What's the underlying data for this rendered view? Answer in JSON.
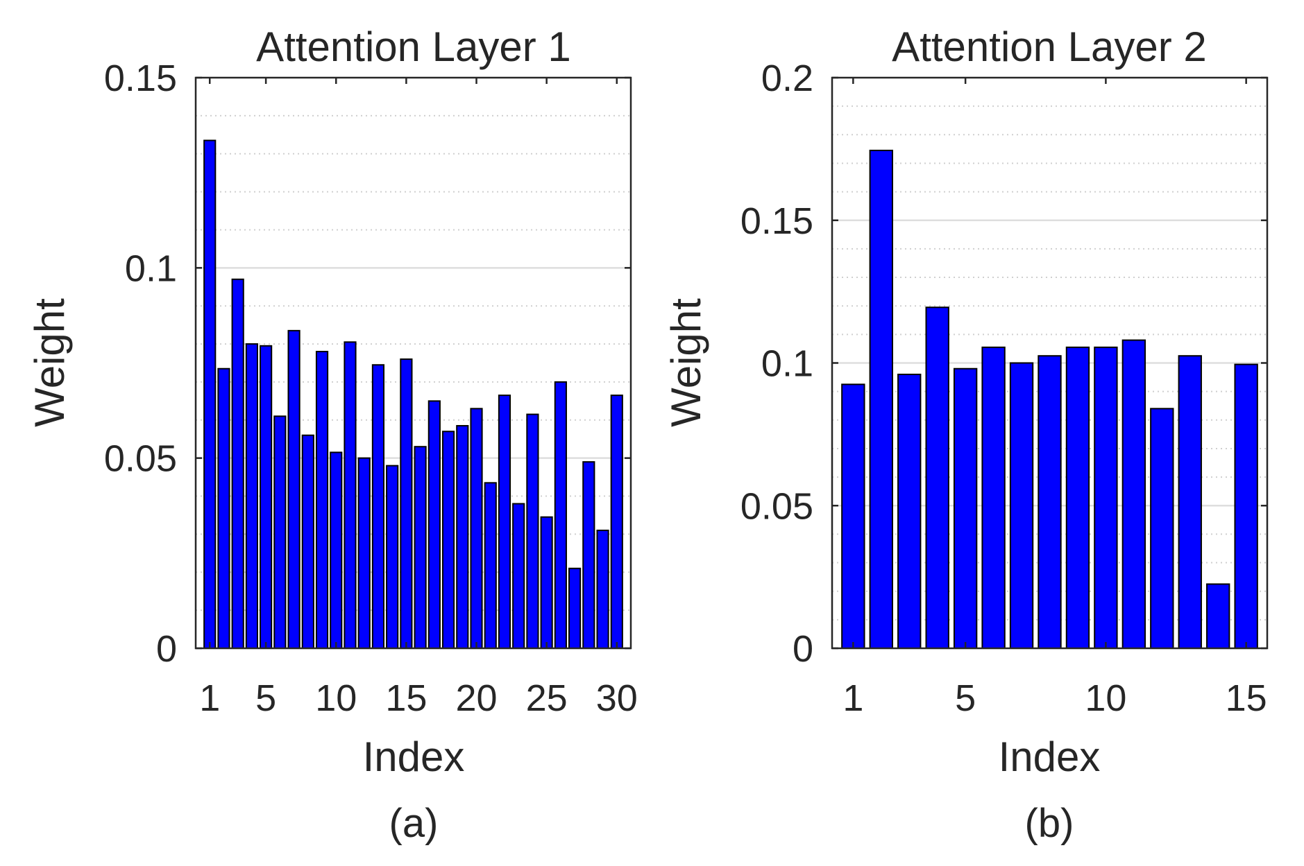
{
  "chart_data": [
    {
      "type": "bar",
      "title": "Attention Layer 1",
      "xlabel": "Index",
      "ylabel": "Weight",
      "caption": "(a)",
      "x": [
        1,
        2,
        3,
        4,
        5,
        6,
        7,
        8,
        9,
        10,
        11,
        12,
        13,
        14,
        15,
        16,
        17,
        18,
        19,
        20,
        21,
        22,
        23,
        24,
        25,
        26,
        27,
        28,
        29,
        30
      ],
      "values": [
        0.1335,
        0.0735,
        0.097,
        0.08,
        0.0795,
        0.061,
        0.0835,
        0.056,
        0.078,
        0.0515,
        0.0805,
        0.05,
        0.0745,
        0.048,
        0.076,
        0.053,
        0.065,
        0.057,
        0.0585,
        0.063,
        0.0435,
        0.0665,
        0.038,
        0.0615,
        0.0345,
        0.07,
        0.021,
        0.049,
        0.031,
        0.0665
      ],
      "xlim": [
        0,
        31
      ],
      "ylim": [
        0,
        0.15
      ],
      "xticks": [
        1,
        5,
        10,
        15,
        20,
        25,
        30
      ],
      "xtick_labels": [
        "1",
        "5",
        "10",
        "15",
        "20",
        "25",
        "30"
      ],
      "yticks": [
        0,
        0.05,
        0.1,
        0.15
      ],
      "ytick_labels": [
        "0",
        "0.05",
        "0.1",
        "0.15"
      ],
      "minor_yticks": [
        0.01,
        0.02,
        0.03,
        0.04,
        0.06,
        0.07,
        0.08,
        0.09,
        0.11,
        0.12,
        0.13,
        0.14
      ],
      "grid": true,
      "bar_color": "#0000ff",
      "edge_color": "#000000"
    },
    {
      "type": "bar",
      "title": "Attention Layer 2",
      "xlabel": "Index",
      "ylabel": "Weight",
      "caption": "(b)",
      "x": [
        1,
        2,
        3,
        4,
        5,
        6,
        7,
        8,
        9,
        10,
        11,
        12,
        13,
        14,
        15
      ],
      "values": [
        0.0925,
        0.1745,
        0.096,
        0.1195,
        0.098,
        0.1055,
        0.1,
        0.1025,
        0.1055,
        0.1055,
        0.108,
        0.084,
        0.1025,
        0.0225,
        0.0995
      ],
      "xlim": [
        0.25,
        15.75
      ],
      "ylim": [
        0,
        0.2
      ],
      "xticks": [
        1,
        5,
        10,
        15
      ],
      "xtick_labels": [
        "1",
        "5",
        "10",
        "15"
      ],
      "yticks": [
        0,
        0.05,
        0.1,
        0.15,
        0.2
      ],
      "ytick_labels": [
        "0",
        "0.05",
        "0.1",
        "0.15",
        "0.2"
      ],
      "minor_yticks": [
        0.01,
        0.02,
        0.03,
        0.04,
        0.06,
        0.07,
        0.08,
        0.09,
        0.11,
        0.12,
        0.13,
        0.14,
        0.16,
        0.17,
        0.18,
        0.19
      ],
      "grid": true,
      "bar_color": "#0000ff",
      "edge_color": "#000000"
    }
  ]
}
